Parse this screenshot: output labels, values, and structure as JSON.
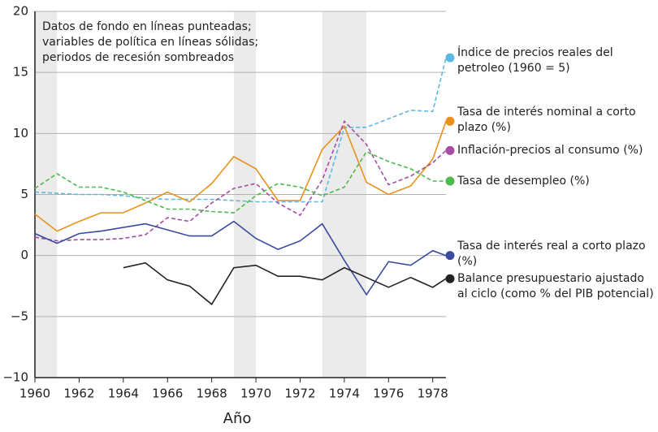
{
  "chart_data": {
    "type": "line",
    "note": [
      "Datos de fondo en líneas punteadas;",
      "variables de política en líneas sólidas;",
      "periodos de recesión sombreados"
    ],
    "xlabel": "Año",
    "x": [
      1960,
      1961,
      1962,
      1963,
      1964,
      1965,
      1966,
      1967,
      1968,
      1969,
      1970,
      1971,
      1972,
      1973,
      1974,
      1975,
      1976,
      1977,
      1978,
      1978.6
    ],
    "series": [
      {
        "name": "Índice de precios reales del petroleo (1960 = 5)",
        "color": "#5bb8e0",
        "dashed": true,
        "values": [
          5.2,
          5.1,
          5.0,
          5.0,
          4.9,
          4.7,
          4.6,
          4.6,
          4.6,
          4.5,
          4.4,
          4.4,
          4.4,
          4.4,
          10.5,
          10.5,
          11.2,
          11.9,
          11.8,
          16.2
        ]
      },
      {
        "name": "Tasa de interés nominal a corto plazo (%)",
        "color": "#e8911e",
        "dashed": false,
        "values": [
          3.4,
          2.0,
          2.8,
          3.5,
          3.5,
          4.3,
          5.2,
          4.4,
          5.9,
          8.1,
          7.1,
          4.5,
          4.5,
          8.7,
          10.6,
          6.0,
          5.0,
          5.7,
          7.9,
          11.0
        ]
      },
      {
        "name": "Inflación-precios al consumo (%)",
        "color": "#a64ca6",
        "dashed": true,
        "values": [
          1.5,
          1.2,
          1.3,
          1.3,
          1.4,
          1.7,
          3.1,
          2.8,
          4.3,
          5.5,
          5.9,
          4.3,
          3.3,
          6.2,
          11.0,
          9.1,
          5.8,
          6.5,
          7.6,
          8.6
        ]
      },
      {
        "name": "Tasa de desempleo (%)",
        "color": "#4cba4c",
        "dashed": true,
        "values": [
          5.5,
          6.7,
          5.6,
          5.6,
          5.2,
          4.5,
          3.8,
          3.8,
          3.6,
          3.5,
          4.9,
          5.9,
          5.6,
          4.9,
          5.6,
          8.5,
          7.7,
          7.1,
          6.1,
          6.1
        ]
      },
      {
        "name": "Tasa de interés real a corto plazo (%)",
        "color": "#3a4a9f",
        "dashed": false,
        "values": [
          1.8,
          1.0,
          1.8,
          2.0,
          2.3,
          2.6,
          2.1,
          1.6,
          1.6,
          2.8,
          1.4,
          0.5,
          1.2,
          2.6,
          -0.4,
          -3.2,
          -0.5,
          -0.8,
          0.4,
          0.0
        ]
      },
      {
        "name": "Balance presupuestario ajustado al ciclo (como % del PIB potencial)",
        "color": "#222222",
        "dashed": false,
        "values": [
          null,
          null,
          null,
          null,
          -1.0,
          -0.6,
          -2.0,
          -2.5,
          -4.0,
          -1.0,
          -0.8,
          -1.7,
          -1.7,
          -2.0,
          -1.0,
          -1.8,
          -2.6,
          -1.8,
          -2.6,
          -1.9
        ]
      }
    ],
    "recessions": [
      [
        1960,
        1961
      ],
      [
        1969,
        1970
      ],
      [
        1973,
        1975
      ]
    ],
    "xlim": [
      1960,
      1978.6
    ],
    "ylim": [
      -10,
      20
    ],
    "xticks": [
      1960,
      1962,
      1964,
      1966,
      1968,
      1970,
      1972,
      1974,
      1976,
      1978
    ],
    "yticks": [
      {
        "value": -10,
        "label": "−10"
      },
      {
        "value": -5,
        "label": "−5"
      },
      0,
      5,
      10,
      15,
      20
    ],
    "grid": true
  }
}
